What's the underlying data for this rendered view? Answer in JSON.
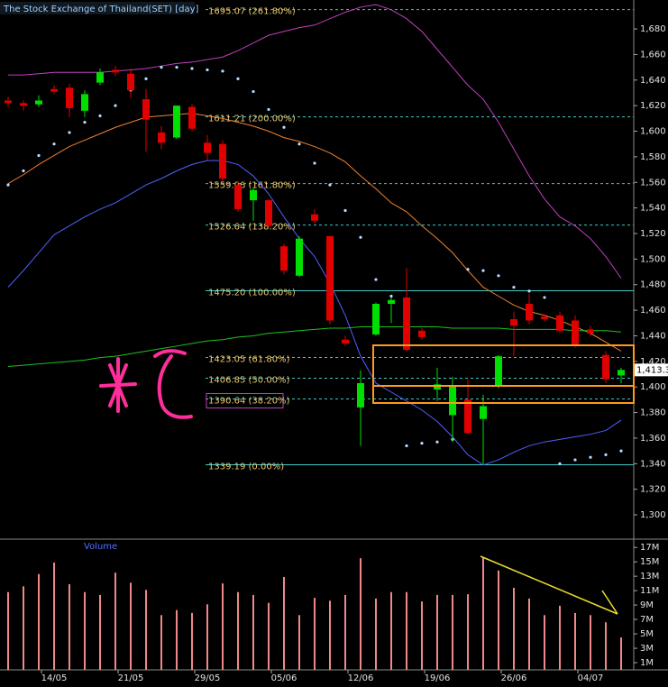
{
  "chart_data": {
    "type": "candlestick",
    "title": "The Stock Exchange of Thailand(SET) [day]",
    "volume_title": "Volume",
    "categories": [
      null,
      null,
      null,
      "14/05",
      null,
      null,
      null,
      null,
      "21/05",
      null,
      null,
      null,
      null,
      "29/05",
      null,
      null,
      null,
      null,
      "05/06",
      null,
      null,
      null,
      null,
      "12/06",
      null,
      null,
      null,
      null,
      "19/06",
      null,
      null,
      null,
      null,
      "26/06",
      null,
      null,
      null,
      null,
      "04/07",
      null,
      null
    ],
    "open": [
      1624,
      1622,
      1621,
      1633,
      1634,
      1616,
      1638,
      1648,
      1645,
      1625,
      1599,
      1595,
      1619,
      1591,
      1590,
      1558,
      1546,
      1546,
      1510,
      1487,
      1535,
      1518,
      1437,
      1384,
      1441,
      1465,
      1470,
      1444,
      1398,
      1378,
      1390,
      1375,
      1401,
      1453,
      1465,
      1455,
      1456,
      1452,
      1445,
      1425,
      1409
    ],
    "high": [
      1627,
      1624,
      1628,
      1636,
      1637,
      1632,
      1649,
      1651,
      1649,
      1633,
      1604,
      1620,
      1621,
      1597,
      1593,
      1561,
      1556,
      1547,
      1512,
      1518,
      1539,
      1518,
      1440,
      1413,
      1466,
      1470,
      1493,
      1446,
      1415,
      1408,
      1406,
      1394,
      1425,
      1459,
      1473,
      1457,
      1459,
      1456,
      1448,
      1428,
      1415
    ],
    "low": [
      1619,
      1616,
      1619,
      1629,
      1611,
      1611,
      1636,
      1643,
      1626,
      1584,
      1586,
      1594,
      1600,
      1577,
      1561,
      1537,
      1530,
      1525,
      1488,
      1486,
      1528,
      1449,
      1432,
      1354,
      1440,
      1450,
      1428,
      1437,
      1389,
      1357,
      1363,
      1339,
      1399,
      1424,
      1449,
      1451,
      1442,
      1431,
      1440,
      1403,
      1403
    ],
    "close": [
      1622,
      1620,
      1624,
      1631,
      1618,
      1629,
      1646,
      1646,
      1632,
      1609,
      1591,
      1620,
      1602,
      1583,
      1563,
      1539,
      1554,
      1526,
      1491,
      1516,
      1530,
      1452,
      1434,
      1403,
      1465,
      1468,
      1429,
      1439,
      1402,
      1401,
      1364,
      1385,
      1424,
      1448,
      1452,
      1453,
      1444,
      1433,
      1442,
      1406,
      1413.3
    ],
    "up_color": "#00e000",
    "down_color": "#e00000",
    "ylim": [
      1281.7,
      1702.6
    ],
    "yticks": [
      {
        "value": 1300,
        "label": "1,300"
      },
      {
        "value": 1320,
        "label": "1,320"
      },
      {
        "value": 1340,
        "label": "1,340"
      },
      {
        "value": 1360,
        "label": "1,360"
      },
      {
        "value": 1380,
        "label": "1,380"
      },
      {
        "value": 1400,
        "label": "1,400"
      },
      {
        "value": 1420,
        "label": "1,420"
      },
      {
        "value": 1440,
        "label": "1,440"
      },
      {
        "value": 1460,
        "label": "1,460"
      },
      {
        "value": 1480,
        "label": "1,480"
      },
      {
        "value": 1500,
        "label": "1,500"
      },
      {
        "value": 1520,
        "label": "1,520"
      },
      {
        "value": 1540,
        "label": "1,540"
      },
      {
        "value": 1560,
        "label": "1,560"
      },
      {
        "value": 1580,
        "label": "1,580"
      },
      {
        "value": 1600,
        "label": "1,600"
      },
      {
        "value": 1620,
        "label": "1,620"
      },
      {
        "value": 1640,
        "label": "1,640"
      },
      {
        "value": 1660,
        "label": "1,660"
      },
      {
        "value": 1680,
        "label": "1,680"
      }
    ],
    "last_price": {
      "value": 1413.3,
      "label": "1,413.3"
    },
    "overlays": [
      {
        "color": "#c040c0",
        "values": [
          1644,
          1644,
          1645,
          1646,
          1646,
          1646,
          1646,
          1647,
          1648,
          1649,
          1651,
          1653,
          1654,
          1656,
          1658,
          1663,
          1669,
          1675,
          1678,
          1681,
          1683,
          1688,
          1693,
          1697,
          1699,
          1695,
          1688,
          1678,
          1664,
          1650,
          1636,
          1625,
          1607,
          1586,
          1565,
          1547,
          1533,
          1526,
          1516,
          1502,
          1485
        ]
      },
      {
        "color": "#5060ff",
        "values": [
          1478,
          1491,
          1505,
          1519,
          1526,
          1533,
          1539,
          1544,
          1551,
          1558,
          1563,
          1569,
          1574,
          1577,
          1577,
          1574,
          1565,
          1551,
          1533,
          1516,
          1502,
          1481,
          1456,
          1424,
          1403,
          1396,
          1389,
          1382,
          1373,
          1361,
          1347,
          1339,
          1343,
          1349,
          1354,
          1357,
          1359,
          1361,
          1363,
          1366,
          1374
        ]
      },
      {
        "color": "#f08030",
        "values": [
          1559,
          1566,
          1574,
          1581,
          1588,
          1593,
          1598,
          1603,
          1607,
          1611,
          1612,
          1613,
          1614,
          1612,
          1610,
          1607,
          1604,
          1600,
          1595,
          1592,
          1588,
          1583,
          1576,
          1565,
          1555,
          1544,
          1537,
          1526,
          1516,
          1505,
          1491,
          1478,
          1471,
          1464,
          1459,
          1456,
          1452,
          1447,
          1442,
          1435,
          1428
        ]
      },
      {
        "color": "#20c020",
        "values": [
          1416,
          1417,
          1418,
          1419,
          1420,
          1421,
          1423,
          1424,
          1426,
          1428,
          1430,
          1432,
          1434,
          1436,
          1437,
          1439,
          1440,
          1442,
          1443,
          1444,
          1445,
          1446,
          1446,
          1447,
          1447,
          1447,
          1447,
          1447,
          1447,
          1446,
          1446,
          1446,
          1446,
          1445,
          1445,
          1445,
          1445,
          1444,
          1444,
          1444,
          1443
        ]
      }
    ],
    "sar": {
      "color": "#b8dcff",
      "values": [
        1558,
        1569,
        1581,
        1590,
        1599,
        1607,
        1612,
        1620,
        1632,
        1641,
        1650,
        1650,
        1649,
        1648,
        1647,
        1641,
        1631,
        1617,
        1603,
        1590,
        1575,
        1558,
        1538,
        1517,
        1484,
        1471,
        1354,
        1356,
        1357,
        1359,
        1492,
        1491,
        1487,
        1478,
        1475,
        1470,
        1340,
        1343,
        1345,
        1347,
        1350
      ]
    },
    "fib_levels": [
      {
        "value": 1695.07,
        "label": "1695.07 (261.80%)",
        "style": "dashed"
      },
      {
        "value": 1611.21,
        "label": "1611.21 (200.00%)",
        "style": "dashed"
      },
      {
        "value": 1559.06,
        "label": "1559.06 (161.80%)",
        "style": "dashed"
      },
      {
        "value": 1526.64,
        "label": "1526.64 (138.20%)",
        "style": "dashed"
      },
      {
        "value": 1475.2,
        "label": "1475.20 (100.00%)",
        "style": "solid"
      },
      {
        "value": 1423.05,
        "label": "1423.05 (61.80%)",
        "style": "dashed"
      },
      {
        "value": 1406.85,
        "label": "1406.85 (50.00%)",
        "style": "dashed"
      },
      {
        "value": 1390.64,
        "label": "1390.64 (38.20%)",
        "style": "dashed",
        "boxed": true
      },
      {
        "value": 1339.19,
        "label": "1339.19 (0.00%)",
        "style": "solid"
      }
    ],
    "fib_color": "#40c8c8",
    "volume": [
      10.8,
      11.6,
      13.3,
      14.9,
      11.9,
      10.8,
      10.4,
      13.5,
      12.1,
      11.1,
      7.6,
      8.3,
      7.9,
      9.1,
      12.0,
      10.8,
      10.4,
      9.3,
      12.9,
      7.6,
      10.0,
      9.6,
      10.4,
      15.5,
      9.9,
      10.8,
      10.8,
      9.5,
      10.4,
      10.4,
      10.5,
      15.6,
      13.8,
      11.4,
      9.9,
      7.6,
      8.9,
      7.9,
      7.6,
      6.6,
      4.5
    ],
    "volume_color": "#f08888",
    "volume_ylim": [
      0,
      17.9
    ],
    "volume_yticks": [
      {
        "value": 1,
        "label": "1M"
      },
      {
        "value": 3,
        "label": "3M"
      },
      {
        "value": 5,
        "label": "5M"
      },
      {
        "value": 7,
        "label": "7M"
      },
      {
        "value": 9,
        "label": "9M"
      },
      {
        "value": 11,
        "label": "11M"
      },
      {
        "value": 13,
        "label": "13M"
      },
      {
        "value": 15,
        "label": "15M"
      },
      {
        "value": 17,
        "label": "17M"
      }
    ]
  }
}
